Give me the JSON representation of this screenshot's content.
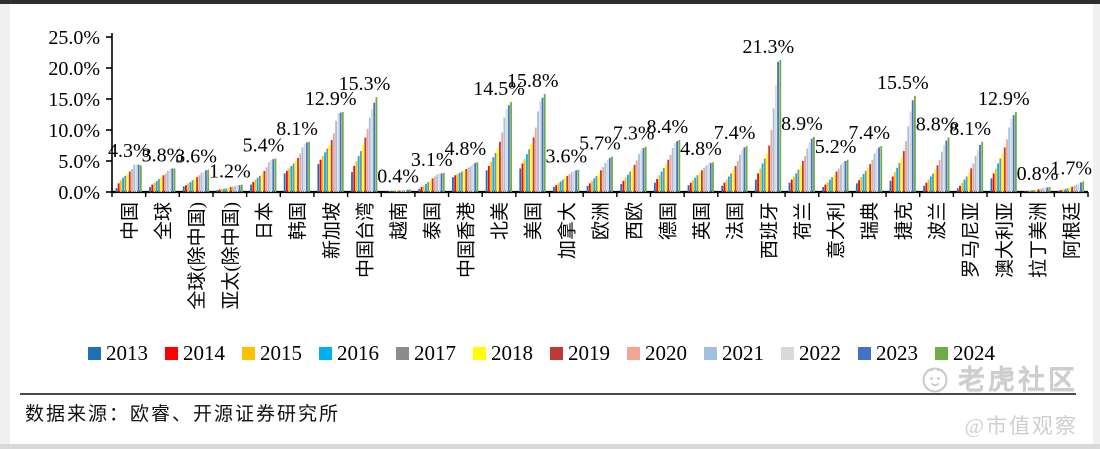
{
  "chart_data": {
    "type": "bar",
    "title": "",
    "xlabel": "",
    "ylabel": "",
    "unit": "%",
    "ylim": [
      0,
      25
    ],
    "ytick_step": 5,
    "ytick_labels": [
      "0.0%",
      "5.0%",
      "10.0%",
      "15.0%",
      "20.0%",
      "25.0%"
    ],
    "grid": false,
    "legend_position": "bottom",
    "years": [
      "2013",
      "2014",
      "2015",
      "2016",
      "2017",
      "2018",
      "2019",
      "2020",
      "2021",
      "2022",
      "2023",
      "2024"
    ],
    "year_colors": {
      "2013": "#1F6FB5",
      "2014": "#FE0000",
      "2015": "#FFC000",
      "2016": "#00B0F0",
      "2017": "#8C8C8C",
      "2018": "#FFFF00",
      "2019": "#BE3A34",
      "2020": "#F2A595",
      "2021": "#A3C0E0",
      "2022": "#D9D9D9",
      "2023": "#4472C4",
      "2024": "#6FAC46"
    },
    "categories": [
      {
        "name": "中国",
        "label": "4.3%",
        "values": [
          0.6,
          1.4,
          1.9,
          2.3,
          2.6,
          2.9,
          3.3,
          3.7,
          4.4,
          4.5,
          4.4,
          4.3
        ]
      },
      {
        "name": "全球",
        "label": "3.8%",
        "values": [
          0.8,
          1.2,
          1.5,
          1.8,
          2.1,
          2.4,
          2.7,
          3.0,
          3.4,
          3.7,
          3.8,
          3.8
        ]
      },
      {
        "name": "全球(除中国)",
        "label": "3.6%",
        "values": [
          0.9,
          1.1,
          1.4,
          1.6,
          1.9,
          2.1,
          2.4,
          2.7,
          3.1,
          3.3,
          3.5,
          3.6
        ]
      },
      {
        "name": "亚太(除中国)",
        "label": "1.2%",
        "values": [
          0.3,
          0.4,
          0.5,
          0.5,
          0.6,
          0.7,
          0.8,
          0.9,
          1.0,
          1.1,
          1.1,
          1.2
        ]
      },
      {
        "name": "日本",
        "label": "5.4%",
        "values": [
          1.2,
          1.6,
          2.0,
          2.3,
          2.6,
          3.0,
          3.4,
          4.0,
          4.8,
          5.2,
          5.3,
          5.4
        ]
      },
      {
        "name": "韩国",
        "label": "8.1%",
        "values": [
          3.0,
          3.4,
          3.8,
          4.2,
          4.6,
          5.0,
          5.5,
          6.2,
          7.2,
          7.8,
          8.0,
          8.1
        ]
      },
      {
        "name": "新加坡",
        "label": "12.9%",
        "values": [
          4.5,
          5.2,
          5.8,
          6.4,
          7.0,
          7.6,
          8.4,
          9.5,
          11.5,
          12.7,
          12.8,
          12.9
        ]
      },
      {
        "name": "中国台湾",
        "label": "15.3%",
        "values": [
          3.2,
          4.2,
          5.0,
          5.8,
          6.6,
          7.6,
          8.8,
          10.2,
          12.0,
          13.4,
          14.4,
          15.3
        ]
      },
      {
        "name": "越南",
        "label": "0.4%",
        "values": [
          0.05,
          0.08,
          0.1,
          0.12,
          0.15,
          0.18,
          0.2,
          0.25,
          0.3,
          0.35,
          0.38,
          0.4
        ]
      },
      {
        "name": "泰国",
        "label": "3.1%",
        "values": [
          0.5,
          0.8,
          1.0,
          1.3,
          1.6,
          1.9,
          2.2,
          2.5,
          2.8,
          3.0,
          3.0,
          3.1
        ]
      },
      {
        "name": "中国香港",
        "label": "4.8%",
        "values": [
          2.4,
          2.7,
          2.9,
          3.1,
          3.3,
          3.5,
          3.7,
          3.9,
          4.2,
          4.5,
          4.7,
          4.8
        ]
      },
      {
        "name": "北美",
        "label": "14.5%",
        "values": [
          3.5,
          4.2,
          4.9,
          5.6,
          6.3,
          7.1,
          8.1,
          9.6,
          12.0,
          13.4,
          14.0,
          14.5
        ]
      },
      {
        "name": "美国",
        "label": "15.8%",
        "values": [
          3.8,
          4.6,
          5.3,
          6.1,
          6.9,
          7.7,
          8.8,
          10.4,
          13.0,
          14.6,
          15.2,
          15.8
        ]
      },
      {
        "name": "加拿大",
        "label": "3.6%",
        "values": [
          0.8,
          1.1,
          1.4,
          1.7,
          2.0,
          2.3,
          2.6,
          2.9,
          3.2,
          3.4,
          3.5,
          3.6
        ]
      },
      {
        "name": "欧洲",
        "label": "5.7%",
        "values": [
          1.0,
          1.4,
          1.8,
          2.2,
          2.6,
          3.0,
          3.5,
          4.0,
          4.7,
          5.2,
          5.5,
          5.7
        ]
      },
      {
        "name": "西欧",
        "label": "7.3%",
        "values": [
          1.3,
          1.8,
          2.3,
          2.8,
          3.3,
          3.8,
          4.4,
          5.1,
          6.1,
          6.7,
          7.1,
          7.3
        ]
      },
      {
        "name": "德国",
        "label": "8.4%",
        "values": [
          1.5,
          2.1,
          2.7,
          3.3,
          3.9,
          4.5,
          5.2,
          6.0,
          7.1,
          7.9,
          8.2,
          8.4
        ]
      },
      {
        "name": "英国",
        "label": "4.8%",
        "values": [
          1.1,
          1.5,
          1.9,
          2.3,
          2.7,
          3.1,
          3.5,
          3.9,
          4.3,
          4.6,
          4.7,
          4.8
        ]
      },
      {
        "name": "法国",
        "label": "7.4%",
        "values": [
          1.0,
          1.5,
          2.0,
          2.5,
          3.0,
          3.6,
          4.2,
          5.0,
          6.0,
          6.8,
          7.2,
          7.4
        ]
      },
      {
        "name": "西班牙",
        "label": "21.3%",
        "values": [
          2.0,
          3.0,
          3.8,
          4.6,
          5.4,
          6.2,
          7.5,
          10.0,
          13.5,
          17.2,
          21.0,
          21.3
        ]
      },
      {
        "name": "荷兰",
        "label": "8.9%",
        "values": [
          1.5,
          2.0,
          2.5,
          3.0,
          3.6,
          4.2,
          5.0,
          5.8,
          7.0,
          8.0,
          8.6,
          8.9
        ]
      },
      {
        "name": "意大利",
        "label": "5.2%",
        "values": [
          0.8,
          1.2,
          1.6,
          2.0,
          2.4,
          2.8,
          3.3,
          3.8,
          4.4,
          4.8,
          5.0,
          5.2
        ]
      },
      {
        "name": "瑞典",
        "label": "7.4%",
        "values": [
          1.4,
          1.9,
          2.4,
          2.9,
          3.4,
          3.9,
          4.5,
          5.2,
          6.2,
          6.9,
          7.2,
          7.4
        ]
      },
      {
        "name": "捷克",
        "label": "15.5%",
        "values": [
          1.8,
          2.5,
          3.2,
          3.9,
          4.7,
          5.5,
          6.6,
          8.2,
          10.6,
          13.0,
          14.8,
          15.5
        ]
      },
      {
        "name": "波兰",
        "label": "8.8%",
        "values": [
          1.0,
          1.5,
          2.0,
          2.5,
          3.0,
          3.6,
          4.3,
          5.2,
          6.5,
          7.6,
          8.3,
          8.8
        ]
      },
      {
        "name": "罗马尼亚",
        "label": "8.1%",
        "values": [
          0.6,
          1.0,
          1.5,
          2.0,
          2.5,
          3.1,
          3.8,
          4.6,
          5.8,
          6.8,
          7.6,
          8.1
        ]
      },
      {
        "name": "澳大利亚",
        "label": "12.9%",
        "values": [
          2.2,
          3.0,
          3.8,
          4.6,
          5.4,
          6.2,
          7.2,
          8.5,
          10.4,
          11.8,
          12.4,
          12.9
        ]
      },
      {
        "name": "拉丁美洲",
        "label": "0.8%",
        "values": [
          0.1,
          0.15,
          0.2,
          0.25,
          0.3,
          0.38,
          0.45,
          0.52,
          0.6,
          0.7,
          0.75,
          0.8
        ]
      },
      {
        "name": "阿根廷",
        "label": "1.7%",
        "values": [
          0.2,
          0.3,
          0.4,
          0.5,
          0.6,
          0.7,
          0.85,
          1.0,
          1.2,
          1.4,
          1.55,
          1.7
        ]
      }
    ]
  },
  "source": {
    "text": "数据来源：欧睿、开源证券研究所"
  },
  "watermarks": {
    "community": "老虎社区",
    "observer": "@市值观察"
  }
}
